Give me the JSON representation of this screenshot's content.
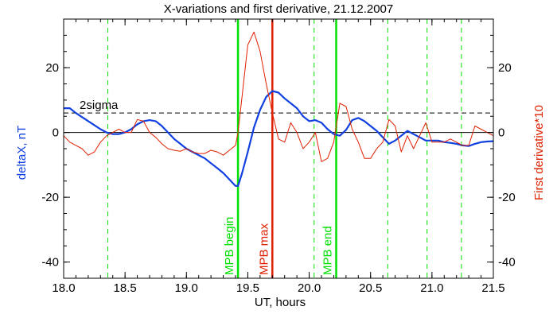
{
  "chart_data": {
    "type": "line",
    "title": "X-variations and first derivative, 21.12.2007",
    "xlabel": "UT, hours",
    "ylabel_left": "deltaX, nT",
    "ylabel_right": "First derivative*10",
    "xlim": [
      18.0,
      21.5
    ],
    "ylim": [
      -45,
      35
    ],
    "x_ticks": [
      18.0,
      18.5,
      19.0,
      19.5,
      20.0,
      20.5,
      21.0,
      21.5
    ],
    "x_tick_labels": [
      "18.0",
      "18.5",
      "19.0",
      "19.5",
      "20.0",
      "20.5",
      "21.0",
      "21.5"
    ],
    "y_ticks": [
      -40,
      -20,
      0,
      20
    ],
    "y_tick_labels": [
      "-40",
      "-20",
      "0",
      "20"
    ],
    "y2_tick_labels": [
      "-40",
      "-20",
      "0",
      "20"
    ],
    "sigma_level": 6,
    "sigma_label": "2sigma",
    "zero_line": 0,
    "dashed_markers_x": [
      18.36,
      19.42,
      20.04,
      20.64,
      20.96,
      21.24
    ],
    "event_lines": [
      {
        "x": 19.42,
        "label": "MPB begin",
        "color": "#00e000"
      },
      {
        "x": 19.7,
        "label": "MPB max",
        "color": "#e02000"
      },
      {
        "x": 20.22,
        "label": "MPB end",
        "color": "#00e000"
      }
    ],
    "colors": {
      "deltaX": "#1040e0",
      "derivative": "#e02000",
      "marker_green": "#00e000",
      "marker_red": "#e02000"
    },
    "series": [
      {
        "name": "deltaX, nT",
        "color": "#1040e0",
        "x": [
          18.0,
          18.05,
          18.1,
          18.2,
          18.3,
          18.35,
          18.4,
          18.45,
          18.5,
          18.55,
          18.6,
          18.65,
          18.7,
          18.75,
          18.8,
          18.85,
          18.9,
          18.95,
          19.0,
          19.05,
          19.1,
          19.15,
          19.2,
          19.25,
          19.3,
          19.35,
          19.4,
          19.42,
          19.45,
          19.5,
          19.55,
          19.6,
          19.65,
          19.7,
          19.75,
          19.8,
          19.85,
          19.9,
          19.95,
          20.0,
          20.05,
          20.1,
          20.15,
          20.2,
          20.25,
          20.3,
          20.35,
          20.4,
          20.45,
          20.5,
          20.55,
          20.6,
          20.65,
          20.7,
          20.75,
          20.8,
          20.85,
          20.9,
          20.95,
          21.0,
          21.05,
          21.1,
          21.15,
          21.2,
          21.25,
          21.3,
          21.35,
          21.4,
          21.45,
          21.5
        ],
        "y": [
          7.5,
          7.5,
          6,
          3.5,
          1,
          0,
          -0.5,
          -0.5,
          0,
          1,
          2.5,
          3.5,
          3.8,
          3.5,
          2,
          0,
          -2,
          -3.5,
          -5,
          -6,
          -7,
          -8,
          -9.5,
          -11,
          -12.5,
          -14.5,
          -16.5,
          -16.5,
          -13,
          -6,
          1.5,
          7,
          11,
          12.8,
          12.3,
          10.5,
          9,
          7.5,
          5,
          3.5,
          3.8,
          3,
          1,
          -0.5,
          -1,
          0.8,
          3.8,
          4.5,
          3.5,
          2,
          0.5,
          -1.5,
          -3.5,
          -2.5,
          -1,
          0.5,
          -0.5,
          -1.5,
          -2.5,
          -2.5,
          -2.5,
          -3,
          -3.2,
          -3.5,
          -4,
          -4.2,
          -3.5,
          -3,
          -2.8,
          -2.7
        ]
      },
      {
        "name": "First derivative*10",
        "color": "#e02000",
        "x": [
          18.0,
          18.05,
          18.1,
          18.15,
          18.2,
          18.25,
          18.3,
          18.35,
          18.4,
          18.45,
          18.5,
          18.55,
          18.6,
          18.65,
          18.7,
          18.75,
          18.8,
          18.85,
          18.9,
          18.95,
          19.0,
          19.05,
          19.1,
          19.15,
          19.2,
          19.25,
          19.3,
          19.35,
          19.4,
          19.42,
          19.45,
          19.5,
          19.55,
          19.6,
          19.63,
          19.65,
          19.7,
          19.75,
          19.8,
          19.85,
          19.9,
          19.95,
          20.0,
          20.05,
          20.1,
          20.15,
          20.2,
          20.25,
          20.3,
          20.35,
          20.4,
          20.45,
          20.5,
          20.55,
          20.6,
          20.65,
          20.7,
          20.75,
          20.8,
          20.85,
          20.9,
          20.95,
          21.0,
          21.05,
          21.1,
          21.15,
          21.2,
          21.25,
          21.3,
          21.35,
          21.4,
          21.45,
          21.5
        ],
        "y": [
          -1,
          -3,
          -4,
          -5,
          -7,
          -6,
          -3,
          -1,
          0,
          1,
          0,
          0,
          4,
          3.5,
          0,
          -1.5,
          -3.5,
          -5,
          -5.5,
          -5.8,
          -5,
          -6,
          -6.5,
          -6.5,
          -5.5,
          -6,
          -7,
          -5.5,
          -4,
          0,
          10,
          27,
          31,
          25,
          19,
          15,
          6,
          -2,
          -3,
          3,
          0,
          -5,
          -3,
          0,
          -9,
          -8,
          -3,
          9,
          8,
          1,
          -3,
          -8,
          -8,
          -5,
          -3,
          4,
          2,
          -6,
          -1,
          -5,
          -1,
          3,
          -3,
          -3,
          -3,
          -2,
          -3,
          -4,
          -4,
          2,
          1,
          0,
          -1
        ]
      }
    ]
  }
}
